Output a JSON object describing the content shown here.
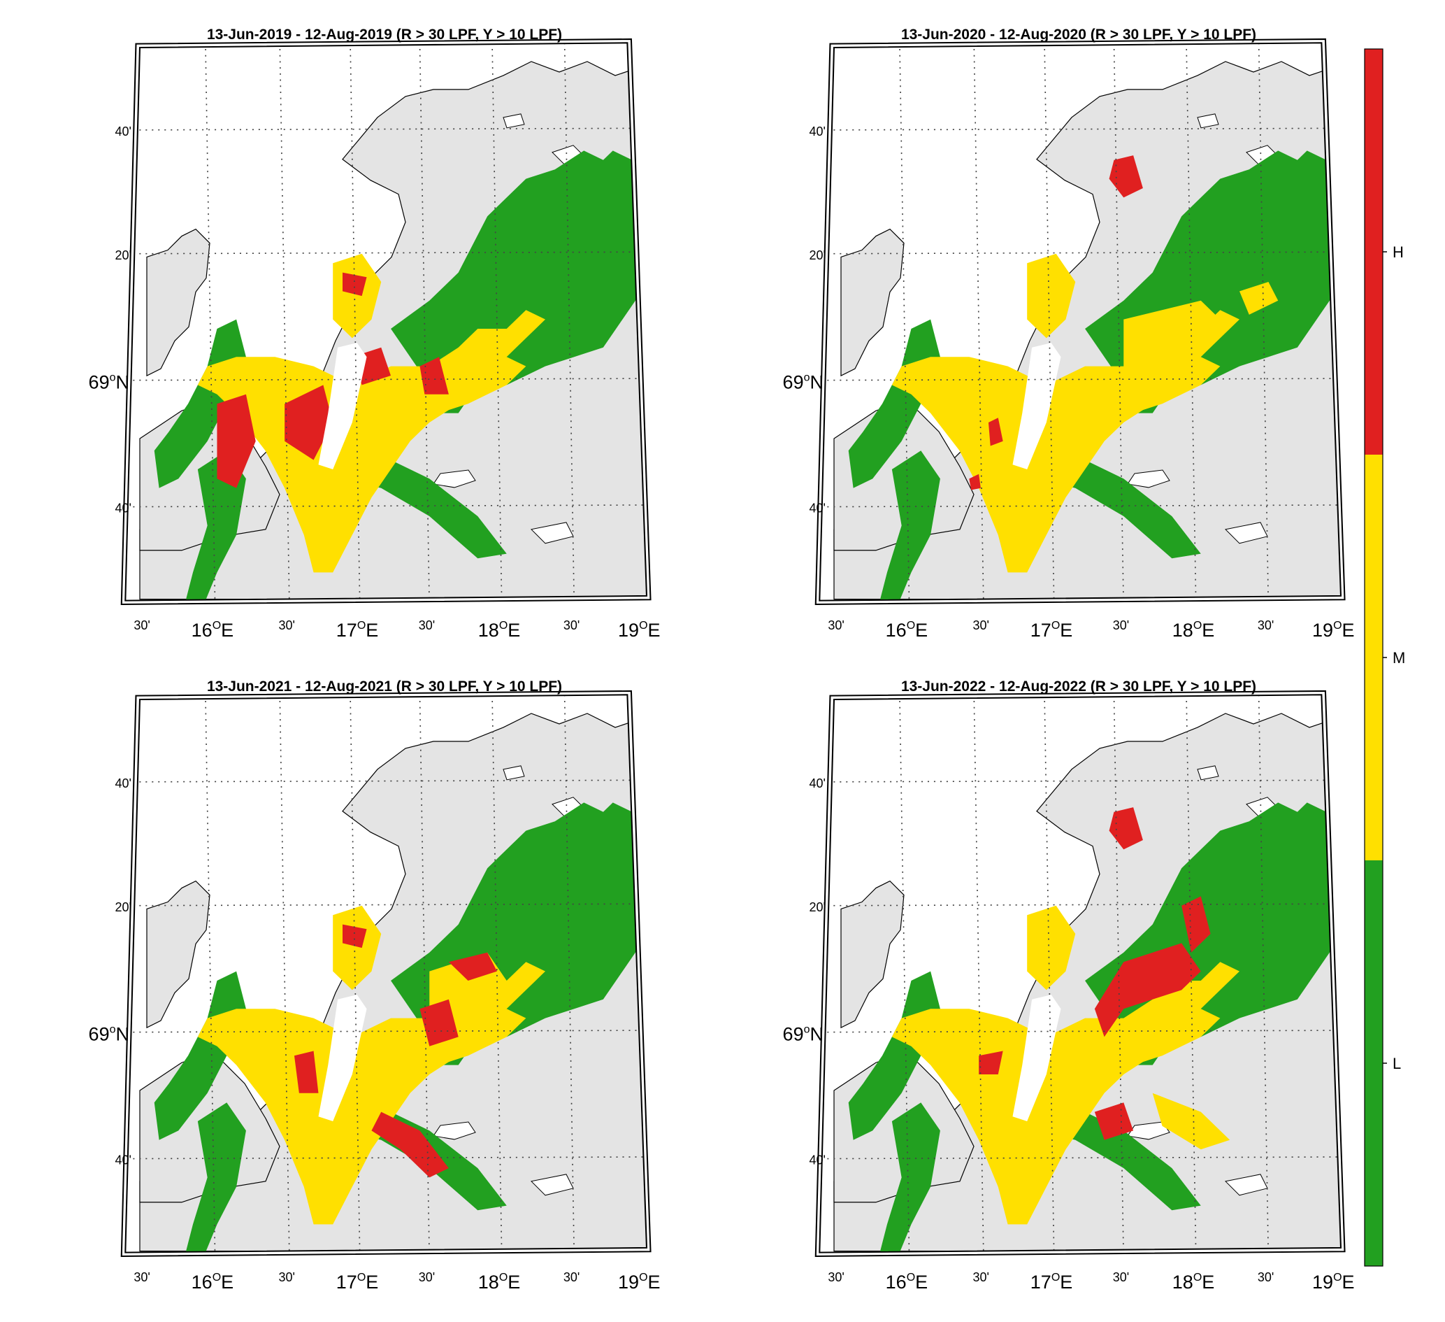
{
  "panels": [
    {
      "title": "13-Jun-2019  - 12-Aug-2019  (R > 30 LPF, Y > 10 LPF)",
      "year": 2019,
      "red_zones": [
        "16E_inner_west",
        "16.7E_central_block",
        "17E_northeast_arm",
        "17.3E_east_bay",
        "16.8E_north_inlet"
      ],
      "yellow_zones": [
        "main_fjord",
        "northern_inlet"
      ]
    },
    {
      "title": "13-Jun-2020  - 12-Aug-2020  (R > 30 LPF, Y > 10 LPF)",
      "year": 2020,
      "red_zones": [
        "17.4E_north_tip",
        "16.7E_small_patches"
      ],
      "yellow_zones": [
        "main_fjord",
        "east_arm",
        "northern_inlet"
      ]
    },
    {
      "title": "13-Jun-2021  - 12-Aug-2021  (R > 30 LPF, Y > 10 LPF)",
      "year": 2021,
      "red_zones": [
        "17.2E_southeast_arms",
        "17.3E_east_bay",
        "16.8E_north_inlet",
        "17.5E_northeast_arm"
      ],
      "yellow_zones": [
        "main_fjord",
        "northeast_arm",
        "northern_inlet"
      ]
    },
    {
      "title": "13-Jun-2022  - 12-Aug-2022  (R > 30 LPF, Y > 10 LPF)",
      "year": 2022,
      "red_zones": [
        "17.5E_large_east_arm",
        "17.9E_north_channel",
        "17.4E_north_tip",
        "16.7E_patches"
      ],
      "yellow_zones": [
        "main_fjord",
        "southeast_arms"
      ]
    }
  ],
  "axes": {
    "lat_labels": [
      {
        "text": "40'",
        "kind": "minor"
      },
      {
        "text": "20'",
        "kind": "minor"
      },
      {
        "text": "69",
        "sup": "o",
        "suffix": "N",
        "kind": "major"
      },
      {
        "text": "40'",
        "kind": "minor"
      }
    ],
    "lon_labels": [
      {
        "text": "30'",
        "kind": "minor"
      },
      {
        "text": "16",
        "sup": "O",
        "suffix": "E",
        "kind": "major"
      },
      {
        "text": "30'",
        "kind": "minor"
      },
      {
        "text": "17",
        "sup": "O",
        "suffix": "E",
        "kind": "major"
      },
      {
        "text": "30'",
        "kind": "minor"
      },
      {
        "text": "18",
        "sup": "O",
        "suffix": "E",
        "kind": "major"
      },
      {
        "text": "30'",
        "kind": "minor"
      },
      {
        "text": "19",
        "sup": "O",
        "suffix": "E",
        "kind": "major"
      }
    ]
  },
  "colorbar": {
    "levels": [
      {
        "label": "H",
        "color": "#e02020"
      },
      {
        "label": "M",
        "color": "#ffe000"
      },
      {
        "label": "L",
        "color": "#22a020"
      }
    ]
  },
  "colors": {
    "land": "#e4e4e4",
    "sea": "#ffffff",
    "green": "#22a020",
    "yellow": "#ffe000",
    "red": "#e02020"
  }
}
